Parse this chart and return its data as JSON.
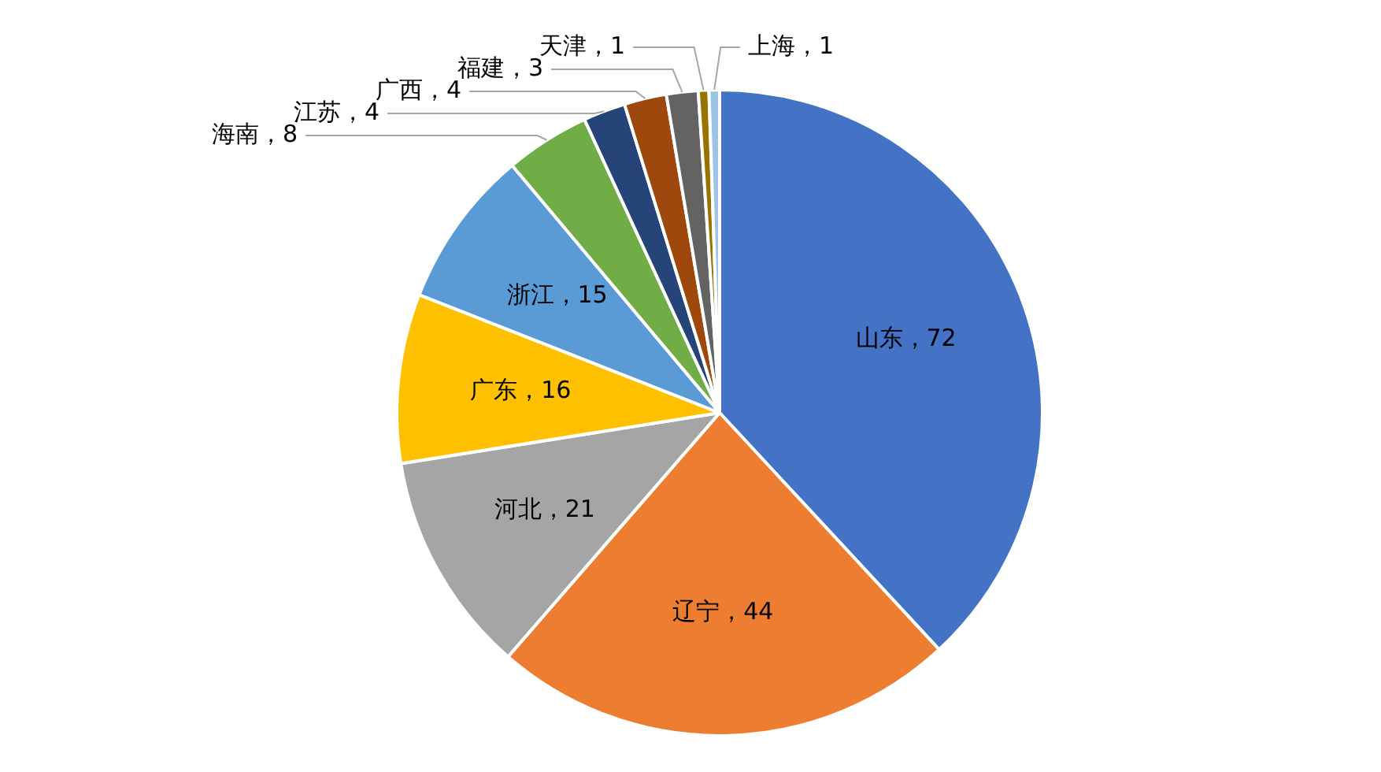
{
  "chart_data": {
    "type": "pie",
    "categories": [
      "山东",
      "辽宁",
      "河北",
      "广东",
      "浙江",
      "海南",
      "江苏",
      "广西",
      "福建",
      "天津",
      "上海"
    ],
    "values": [
      72,
      44,
      21,
      16,
      15,
      8,
      4,
      4,
      3,
      1,
      1
    ],
    "value_labels": [
      "，72",
      "，44",
      "，21",
      "，16",
      "，15",
      "，8",
      "，4",
      "，4",
      "，3",
      "，1",
      "，1"
    ],
    "colors": [
      "#4472c4",
      "#ed7d31",
      "#a5a5a5",
      "#ffc000",
      "#5b9bd5",
      "#70ad47",
      "#264478",
      "#9e480e",
      "#636363",
      "#997300",
      "#9dc3e6"
    ]
  }
}
